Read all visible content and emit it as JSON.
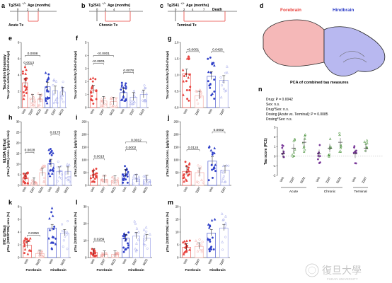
{
  "colors": {
    "red_dark": "#e8413c",
    "red_light": "#f2a09a",
    "blue_dark": "#3040c8",
    "blue_light": "#8f96e6",
    "purple": "#7a3a9a",
    "green": "#3a8a2a",
    "brain_forebrain": "#f5b8b8",
    "brain_hindbrain": "#b8b8f0"
  },
  "timeline": [
    {
      "letter": "a",
      "strain": "Tg2541",
      "sup": "+/+",
      "age_label": "Age (months)",
      "ticks": [
        "0",
        "2",
        "4"
      ],
      "tx": "Acute Tx"
    },
    {
      "letter": "b",
      "strain": "Tg2541",
      "sup": "+/+",
      "age_label": "Age (months)",
      "ticks": [
        "0",
        "2",
        "4",
        "7"
      ],
      "tx": "Chronic Tx"
    },
    {
      "letter": "c",
      "strain": "Tg2541",
      "sup": "+/+",
      "age_label": "",
      "ticks": [
        "0",
        "2",
        "4",
        "7",
        "Death"
      ],
      "tx": "Terminal Tx"
    }
  ],
  "brain": {
    "letter": "d",
    "forebrain": "Forebrain",
    "hindbrain": "Hindbrain"
  },
  "row_labels": [
    {
      "main": "Tau-prion bioassay",
      "sub": "Tau-prion activity (fold-change)"
    },
    {
      "main": "ELISA (pTau)",
      "sub": "pTau [S396] conc. (µg/g brain)"
    },
    {
      "main": "IHC (pTau)",
      "sub": "pTau [S202/T205] area (%)"
    }
  ],
  "panels": [
    {
      "letter": "e",
      "ylabel": "Tau-prion activity (fold-change)",
      "yticks": [
        "0",
        "2",
        "4",
        "6",
        "8"
      ],
      "xlabels": [
        "Veh",
        "3397",
        "5622",
        "Veh",
        "3397",
        "5622"
      ],
      "pvals": [
        {
          "text": "0.0008"
        },
        {
          "text": "0.0013"
        }
      ]
    },
    {
      "letter": "f",
      "ylabel": "Tau-prion activity (fold-change)",
      "yticks": [
        "0",
        "1",
        "2",
        "3",
        "4",
        "5"
      ],
      "xlabels": [
        "Veh",
        "3397",
        "5622",
        "Veh",
        "3397",
        "5622"
      ],
      "pvals": [
        {
          "text": "<0.0001"
        },
        {
          "text": "<0.0001"
        },
        {
          "text": "0.0078"
        }
      ]
    },
    {
      "letter": "g",
      "ylabel": "Tau-prion activity (fold-change)",
      "yticks": [
        "0.0",
        "0.5",
        "1.0",
        "1.5",
        "2.0"
      ],
      "xlabels": [
        "Veh",
        "3397",
        "Veh",
        "3397"
      ],
      "pvals": [
        {
          "text": "<0.0001"
        },
        {
          "text": "0.0426"
        }
      ]
    },
    {
      "letter": "h",
      "ylabel": "pTau [S396] conc. (µg/g brain)",
      "yticks": [
        "0",
        "5",
        "10",
        "15",
        "20",
        "25",
        "30"
      ],
      "xlabels": [
        "Veh",
        "3397",
        "5622",
        "Veh",
        "3397",
        "5622"
      ],
      "pvals": [
        {
          "text": "0.0028"
        },
        {
          "text": "0.0175"
        }
      ]
    },
    {
      "letter": "i",
      "ylabel": "pTau [S396] conc. (µg/g brain)",
      "yticks": [
        "0",
        "50",
        "100",
        "150",
        "200",
        "250"
      ],
      "xlabels": [
        "Veh",
        "3397",
        "5622",
        "Veh",
        "3397",
        "5622"
      ],
      "pvals": [
        {
          "text": "0.0013"
        },
        {
          "text": "0.0012"
        },
        {
          "text": "0.0002"
        }
      ]
    },
    {
      "letter": "j",
      "ylabel": "pTau [S396] conc. (µg/g brain)",
      "yticks": [
        "0",
        "50",
        "100",
        "150",
        "200",
        "250"
      ],
      "xlabels": [
        "Veh",
        "3397",
        "Veh",
        "3397"
      ],
      "pvals": [
        {
          "text": "0.0124"
        },
        {
          "text": "0.0002"
        }
      ]
    },
    {
      "letter": "k",
      "ylabel": "pTau [S202/T205] area (%)",
      "yticks": [
        "0",
        "2",
        "4",
        "6",
        "8"
      ],
      "xlabels": [
        "Veh",
        "5622",
        "Veh",
        "5622"
      ],
      "pvals": [
        {
          "text": "0.0250"
        }
      ],
      "groups": [
        "Forebrain",
        "Hindbrain"
      ]
    },
    {
      "letter": "l",
      "ylabel": "pTau [S202/T205] area (%)",
      "yticks": [
        "0",
        "10",
        "20",
        "30"
      ],
      "xlabels": [
        "Veh",
        "3397",
        "5622",
        "Veh",
        "3397",
        "5622"
      ],
      "pvals": [
        {
          "text": "0.0289"
        }
      ],
      "groups": [
        "Forebrain",
        "Hindbrain"
      ]
    },
    {
      "letter": "m",
      "ylabel": "pTau [S202/T205] area (%)",
      "yticks": [
        "0",
        "5",
        "10",
        "15",
        "20"
      ],
      "xlabels": [
        "Veh",
        "3397",
        "Veh",
        "3397"
      ],
      "pvals": [],
      "groups": [
        "Forebrain",
        "Hindbrain"
      ]
    }
  ],
  "pca": {
    "letter": "n",
    "title": "PCA of combined tau measures",
    "stats": [
      "Drug: P = 0.0042",
      "Sex: n.s.",
      "Drug*Sex: n.s.",
      "Dosing [Acute vs. Terminal]: P = 0.0085",
      "Dosing*Sex: n.s."
    ],
    "ylabel": "Tau score (PC1)",
    "yticks": [
      "-2",
      "-1",
      "0",
      "1",
      "2",
      "3"
    ],
    "groups": [
      {
        "name": "Acute",
        "xlabels": [
          "Veh",
          "3397",
          "5622"
        ]
      },
      {
        "name": "Chronic",
        "xlabels": [
          "Veh",
          "3397",
          "5622"
        ]
      },
      {
        "name": "Terminal",
        "xlabels": [
          "Veh",
          "3397"
        ]
      }
    ]
  },
  "watermark": {
    "cn": "復旦大學",
    "en": "FUDAN UNIVERSITY"
  }
}
